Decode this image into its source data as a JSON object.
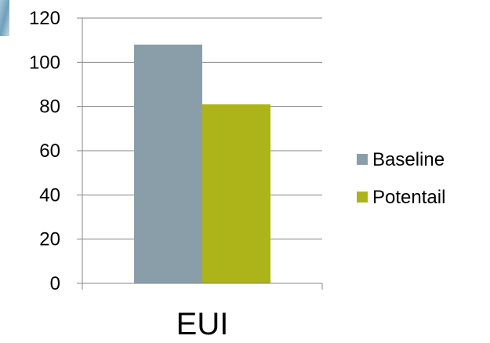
{
  "chart_data": {
    "type": "bar",
    "categories": [
      "EUI"
    ],
    "series": [
      {
        "name": "Baseline",
        "values": [
          108
        ],
        "color": "#8a9ea9"
      },
      {
        "name": "Potentail",
        "values": [
          81
        ],
        "color": "#acb419"
      }
    ],
    "title": "",
    "xlabel": "",
    "ylabel": "",
    "ylim": [
      0,
      120
    ],
    "yticks": [
      "0",
      "20",
      "40",
      "60",
      "80",
      "100",
      "120"
    ],
    "grid": true,
    "legend_position": "right",
    "decoration": "corner image tile at top-left"
  }
}
